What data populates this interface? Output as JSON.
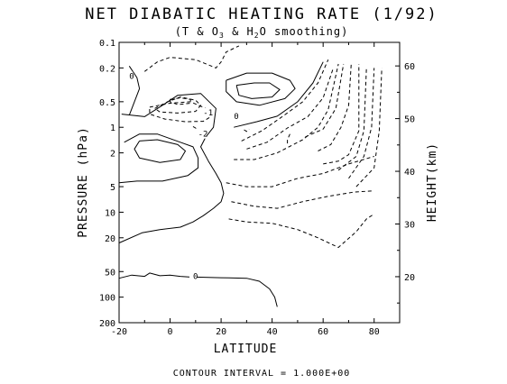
{
  "chart_data": {
    "type": "contour",
    "title": "NET DIABATIC HEATING RATE (1/92)",
    "subtitle_parts": [
      "(T & O",
      "3",
      " & H",
      "2",
      "O smoothing)"
    ],
    "xlabel": "LATITUDE",
    "ylabel": "PRESSURE (hPa)",
    "y2label": "HEIGHT(km)",
    "footer": "CONTOUR INTERVAL = 1.000E+00",
    "contour_interval": 1.0,
    "xlim": [
      -20,
      90
    ],
    "ylim": [
      200,
      0.1
    ],
    "y_scale": "log",
    "x_ticks": [
      -20,
      0,
      20,
      40,
      60,
      80
    ],
    "x_tick_labels": [
      "-20",
      "0",
      "20",
      "40",
      "60",
      "80"
    ],
    "y_ticks": [
      0.1,
      0.2,
      0.5,
      1,
      2,
      5,
      10,
      20,
      50,
      100,
      200
    ],
    "y_tick_labels": [
      "0.1",
      "0.2",
      "0.5",
      "1",
      "2",
      "5",
      "10",
      "20",
      "50",
      "100",
      "200"
    ],
    "y2_ticks": [
      20,
      30,
      40,
      50,
      60
    ],
    "y2_tick_labels": [
      "20",
      "30",
      "40",
      "50",
      "60"
    ],
    "contours": [
      {
        "style": "solid",
        "points": [
          [
            -16,
            0.19
          ],
          [
            -13,
            0.26
          ],
          [
            -12,
            0.35
          ],
          [
            -14,
            0.5
          ],
          [
            -16,
            0.72
          ]
        ]
      },
      {
        "style": "solid",
        "points": [
          [
            -19,
            0.7
          ],
          [
            -10,
            0.75
          ],
          [
            -3,
            0.55
          ],
          [
            3,
            0.42
          ],
          [
            12,
            0.4
          ],
          [
            18,
            0.6
          ],
          [
            17,
            1.0
          ],
          [
            14,
            1.3
          ],
          [
            12,
            1.7
          ],
          [
            15,
            2.5
          ],
          [
            18,
            3.5
          ],
          [
            20,
            4.5
          ],
          [
            21,
            6.0
          ],
          [
            20,
            7.5
          ],
          [
            17,
            9.0
          ],
          [
            13,
            11.0
          ],
          [
            9,
            13.0
          ],
          [
            4,
            15.0
          ],
          [
            -4,
            16.0
          ],
          [
            -11,
            17.5
          ],
          [
            -20,
            23.0
          ]
        ]
      },
      {
        "style": "solid",
        "points": [
          [
            -18,
            1.5
          ],
          [
            -12,
            1.2
          ],
          [
            -5,
            1.2
          ],
          [
            4,
            1.5
          ],
          [
            9,
            1.7
          ],
          [
            11,
            2.3
          ],
          [
            11,
            3.0
          ],
          [
            7,
            3.7
          ],
          [
            -3,
            4.3
          ],
          [
            -13,
            4.3
          ],
          [
            -20,
            4.5
          ]
        ]
      },
      {
        "style": "solid",
        "points": [
          [
            -12,
            1.45
          ],
          [
            -5,
            1.4
          ],
          [
            3,
            1.6
          ],
          [
            6,
            1.9
          ],
          [
            4,
            2.4
          ],
          [
            -4,
            2.6
          ],
          [
            -12,
            2.3
          ],
          [
            -14,
            1.8
          ],
          [
            -12,
            1.45
          ]
        ]
      },
      {
        "style": "solid",
        "points": [
          [
            22,
            0.28
          ],
          [
            30,
            0.23
          ],
          [
            40,
            0.23
          ],
          [
            47,
            0.28
          ],
          [
            49,
            0.35
          ],
          [
            45,
            0.46
          ],
          [
            35,
            0.55
          ],
          [
            26,
            0.5
          ],
          [
            22,
            0.38
          ],
          [
            22,
            0.28
          ]
        ]
      },
      {
        "style": "solid",
        "points": [
          [
            26,
            0.32
          ],
          [
            33,
            0.3
          ],
          [
            39,
            0.3
          ],
          [
            43,
            0.36
          ],
          [
            40,
            0.44
          ],
          [
            32,
            0.46
          ],
          [
            27,
            0.42
          ],
          [
            26,
            0.32
          ]
        ]
      },
      {
        "style": "solid",
        "points": [
          [
            25,
            1.0
          ],
          [
            34,
            0.86
          ],
          [
            42,
            0.74
          ],
          [
            50,
            0.5
          ],
          [
            56,
            0.3
          ],
          [
            60,
            0.17
          ]
        ]
      },
      {
        "style": "solid",
        "points": [
          [
            -20,
            60
          ],
          [
            -15,
            55
          ],
          [
            -10,
            57
          ],
          [
            -8,
            52
          ],
          [
            -4,
            56
          ],
          [
            0,
            55
          ],
          [
            4,
            57
          ],
          [
            8,
            58
          ],
          [
            10,
            58
          ],
          [
            20,
            59
          ],
          [
            30,
            60
          ],
          [
            35,
            65
          ],
          [
            39,
            80
          ],
          [
            41,
            100
          ],
          [
            42,
            130
          ]
        ]
      },
      {
        "style": "dashed",
        "points": [
          [
            -10,
            0.22
          ],
          [
            -5,
            0.17
          ],
          [
            0,
            0.15
          ],
          [
            10,
            0.16
          ],
          [
            18,
            0.2
          ],
          [
            20,
            0.17
          ],
          [
            22,
            0.13
          ],
          [
            27,
            0.11
          ]
        ]
      },
      {
        "style": "dashed",
        "points": [
          [
            -6,
            0.6
          ],
          [
            -1,
            0.5
          ],
          [
            4,
            0.44
          ],
          [
            10,
            0.48
          ],
          [
            12,
            0.55
          ],
          [
            10,
            0.65
          ],
          [
            3,
            0.68
          ],
          [
            -4,
            0.66
          ],
          [
            -6,
            0.6
          ]
        ]
      },
      {
        "style": "dashed",
        "points": [
          [
            -8,
            0.58
          ],
          [
            0,
            0.52
          ],
          [
            8,
            0.5
          ],
          [
            14,
            0.6
          ],
          [
            16,
            0.75
          ],
          [
            13,
            0.85
          ],
          [
            6,
            0.86
          ],
          [
            -2,
            0.8
          ],
          [
            -8,
            0.7
          ],
          [
            -8,
            0.58
          ]
        ]
      },
      {
        "style": "dashed",
        "points": [
          [
            0,
            0.47
          ],
          [
            4,
            0.45
          ],
          [
            8,
            0.47
          ],
          [
            8,
            0.52
          ],
          [
            3,
            0.54
          ],
          [
            0,
            0.5
          ],
          [
            0,
            0.47
          ]
        ]
      },
      {
        "style": "dashed",
        "points": [
          [
            9,
            0.98
          ],
          [
            10,
            1.02
          ],
          [
            11,
            1.12
          ]
        ]
      },
      {
        "style": "dashed",
        "points": [
          [
            29,
            1.07
          ],
          [
            30,
            1.12
          ],
          [
            31,
            1.05
          ]
        ]
      },
      {
        "style": "dashed",
        "points": [
          [
            28,
            1.45
          ],
          [
            36,
            1.1
          ],
          [
            44,
            0.75
          ],
          [
            52,
            0.5
          ],
          [
            58,
            0.3
          ],
          [
            62,
            0.16
          ]
        ]
      },
      {
        "style": "dashed",
        "points": [
          [
            30,
            1.8
          ],
          [
            38,
            1.5
          ],
          [
            46,
            1.02
          ],
          [
            54,
            0.75
          ],
          [
            60,
            0.45
          ],
          [
            64,
            0.2
          ]
        ]
      },
      {
        "style": "dashed",
        "points": [
          [
            25,
            2.4
          ],
          [
            33,
            2.4
          ],
          [
            42,
            2.0
          ],
          [
            52,
            1.4
          ],
          [
            58,
            1.0
          ],
          [
            62,
            0.62
          ],
          [
            66,
            0.18
          ]
        ]
      },
      {
        "style": "dashed",
        "points": [
          [
            53,
            1.3
          ],
          [
            60,
            1.05
          ],
          [
            65,
            0.6
          ],
          [
            68,
            0.18
          ]
        ]
      },
      {
        "style": "dashed",
        "points": [
          [
            58,
            1.9
          ],
          [
            63,
            1.6
          ],
          [
            67,
            1.0
          ],
          [
            70,
            0.55
          ],
          [
            71,
            0.18
          ]
        ]
      },
      {
        "style": "dashed",
        "points": [
          [
            60,
            2.7
          ],
          [
            66,
            2.5
          ],
          [
            70,
            2.1
          ],
          [
            74,
            1.1
          ],
          [
            74,
            0.18
          ]
        ]
      },
      {
        "style": "dashed",
        "points": [
          [
            66,
            3.2
          ],
          [
            73,
            2.2
          ],
          [
            76,
            1.1
          ],
          [
            77,
            0.2
          ]
        ]
      },
      {
        "style": "dashed",
        "points": [
          [
            70,
            4.0
          ],
          [
            76,
            2.2
          ],
          [
            79,
            1.0
          ],
          [
            80,
            0.2
          ]
        ]
      },
      {
        "style": "dashed",
        "points": [
          [
            73,
            5.0
          ],
          [
            80,
            3.0
          ],
          [
            82,
            1.1
          ],
          [
            83,
            0.2
          ]
        ]
      },
      {
        "style": "dashed",
        "points": [
          [
            22,
            4.5
          ],
          [
            30,
            5.0
          ],
          [
            40,
            5.0
          ],
          [
            50,
            4.0
          ],
          [
            60,
            3.5
          ],
          [
            70,
            2.7
          ],
          [
            80,
            2.2
          ]
        ]
      },
      {
        "style": "dashed",
        "points": [
          [
            24,
            7.5
          ],
          [
            33,
            8.5
          ],
          [
            42,
            9.0
          ],
          [
            52,
            7.5
          ],
          [
            62,
            6.5
          ],
          [
            72,
            5.8
          ],
          [
            80,
            5.6
          ]
        ]
      },
      {
        "style": "dashed",
        "points": [
          [
            23,
            12.0
          ],
          [
            30,
            13.0
          ],
          [
            40,
            13.5
          ],
          [
            50,
            16.0
          ],
          [
            58,
            20.0
          ],
          [
            66,
            26.0
          ],
          [
            73,
            17.0
          ],
          [
            77,
            12.0
          ],
          [
            80,
            10.5
          ]
        ]
      },
      {
        "style": "dashed",
        "points": [
          [
            47,
            1.2
          ],
          [
            46,
            1.4
          ],
          [
            46,
            1.6
          ]
        ]
      }
    ],
    "labels": [
      {
        "text": "0",
        "x": -16,
        "y": 0.25
      },
      {
        "text": "-1",
        "x": 13,
        "y": 0.67
      },
      {
        "text": "0",
        "x": 25,
        "y": 0.74
      },
      {
        "text": "-2",
        "x": 11,
        "y": 1.2
      },
      {
        "text": "0",
        "x": 9,
        "y": 57
      }
    ]
  }
}
